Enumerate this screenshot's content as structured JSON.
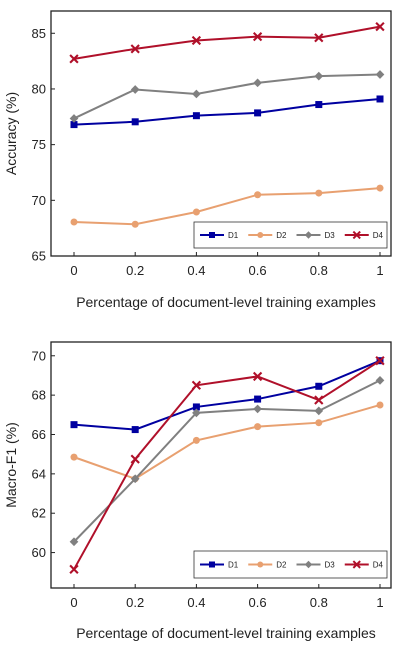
{
  "chart_data": [
    {
      "type": "line",
      "title": "",
      "xlabel": "Percentage of document-level training examples",
      "ylabel": "Accuracy (%)",
      "x": [
        0,
        0.2,
        0.4,
        0.6,
        0.8,
        1
      ],
      "x_tick_labels": [
        "0",
        "0.2",
        "0.4",
        "0.6",
        "0.8",
        "1"
      ],
      "ylim": [
        65,
        87
      ],
      "y_ticks": [
        65,
        70,
        75,
        80,
        85
      ],
      "legend_position": "bottom-right",
      "grid": false,
      "series": [
        {
          "name": "D1",
          "color": "#0000a0",
          "marker": "square",
          "values": [
            76.8,
            77.05,
            77.6,
            77.85,
            78.6,
            79.1
          ]
        },
        {
          "name": "D2",
          "color": "#e8a070",
          "marker": "circle",
          "values": [
            68.05,
            67.85,
            68.95,
            70.5,
            70.65,
            71.1
          ]
        },
        {
          "name": "D3",
          "color": "#808080",
          "marker": "diamond",
          "values": [
            77.35,
            79.95,
            79.55,
            80.55,
            81.15,
            81.3
          ]
        },
        {
          "name": "D4",
          "color": "#b0102a",
          "marker": "x",
          "values": [
            82.7,
            83.6,
            84.35,
            84.7,
            84.6,
            85.6
          ]
        }
      ]
    },
    {
      "type": "line",
      "title": "",
      "xlabel": "Percentage of document-level training examples",
      "ylabel": "Macro-F1 (%)",
      "x": [
        0,
        0.2,
        0.4,
        0.6,
        0.8,
        1
      ],
      "x_tick_labels": [
        "0",
        "0.2",
        "0.4",
        "0.6",
        "0.8",
        "1"
      ],
      "ylim": [
        58.2,
        70.7
      ],
      "y_ticks": [
        60,
        62,
        64,
        66,
        68,
        70
      ],
      "legend_position": "bottom-right",
      "grid": false,
      "series": [
        {
          "name": "D1",
          "color": "#0000a0",
          "marker": "square",
          "values": [
            66.5,
            66.25,
            67.4,
            67.8,
            68.45,
            69.75
          ]
        },
        {
          "name": "D2",
          "color": "#e8a070",
          "marker": "circle",
          "values": [
            64.85,
            63.75,
            65.7,
            66.4,
            66.6,
            67.5
          ]
        },
        {
          "name": "D3",
          "color": "#808080",
          "marker": "diamond",
          "values": [
            60.55,
            63.75,
            67.1,
            67.3,
            67.2,
            68.75
          ]
        },
        {
          "name": "D4",
          "color": "#b0102a",
          "marker": "x",
          "values": [
            59.15,
            64.75,
            68.5,
            68.95,
            67.75,
            69.75
          ]
        }
      ]
    }
  ]
}
